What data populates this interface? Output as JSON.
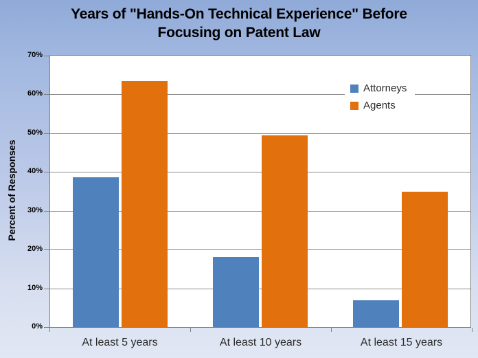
{
  "title": {
    "line1": "Years of \"Hands-On Technical Experience\" Before",
    "line2": "Focusing on Patent Law"
  },
  "chart_data": {
    "type": "bar",
    "title": "Years of \"Hands-On Technical Experience\" Before Focusing on Patent Law",
    "xlabel": "",
    "ylabel": "Percent of Responses",
    "categories": [
      "At least 5 years",
      "At least 10 years",
      "At least 15 years"
    ],
    "series": [
      {
        "name": "Attorneys",
        "color": "#4F81BD",
        "values": [
          38.7,
          18,
          7
        ]
      },
      {
        "name": "Agents",
        "color": "#E2700D",
        "values": [
          63.5,
          49.5,
          35
        ]
      }
    ],
    "ylim": [
      0,
      70
    ],
    "ytick_step": 10,
    "ytick_labels": [
      "0%",
      "10%",
      "20%",
      "30%",
      "40%",
      "50%",
      "60%",
      "70%"
    ],
    "grid": true,
    "legend_position": "inside-top-right",
    "unit": "percent"
  },
  "colors": {
    "plot_background": "#FFFFFF",
    "gridline": "#8C8C8C",
    "axis_line": "#7F7F7F",
    "title_text": "#000000",
    "label_text": "#2B2B2B",
    "background_top": "#90AAD8",
    "background_bottom": "#E1E7F4"
  }
}
